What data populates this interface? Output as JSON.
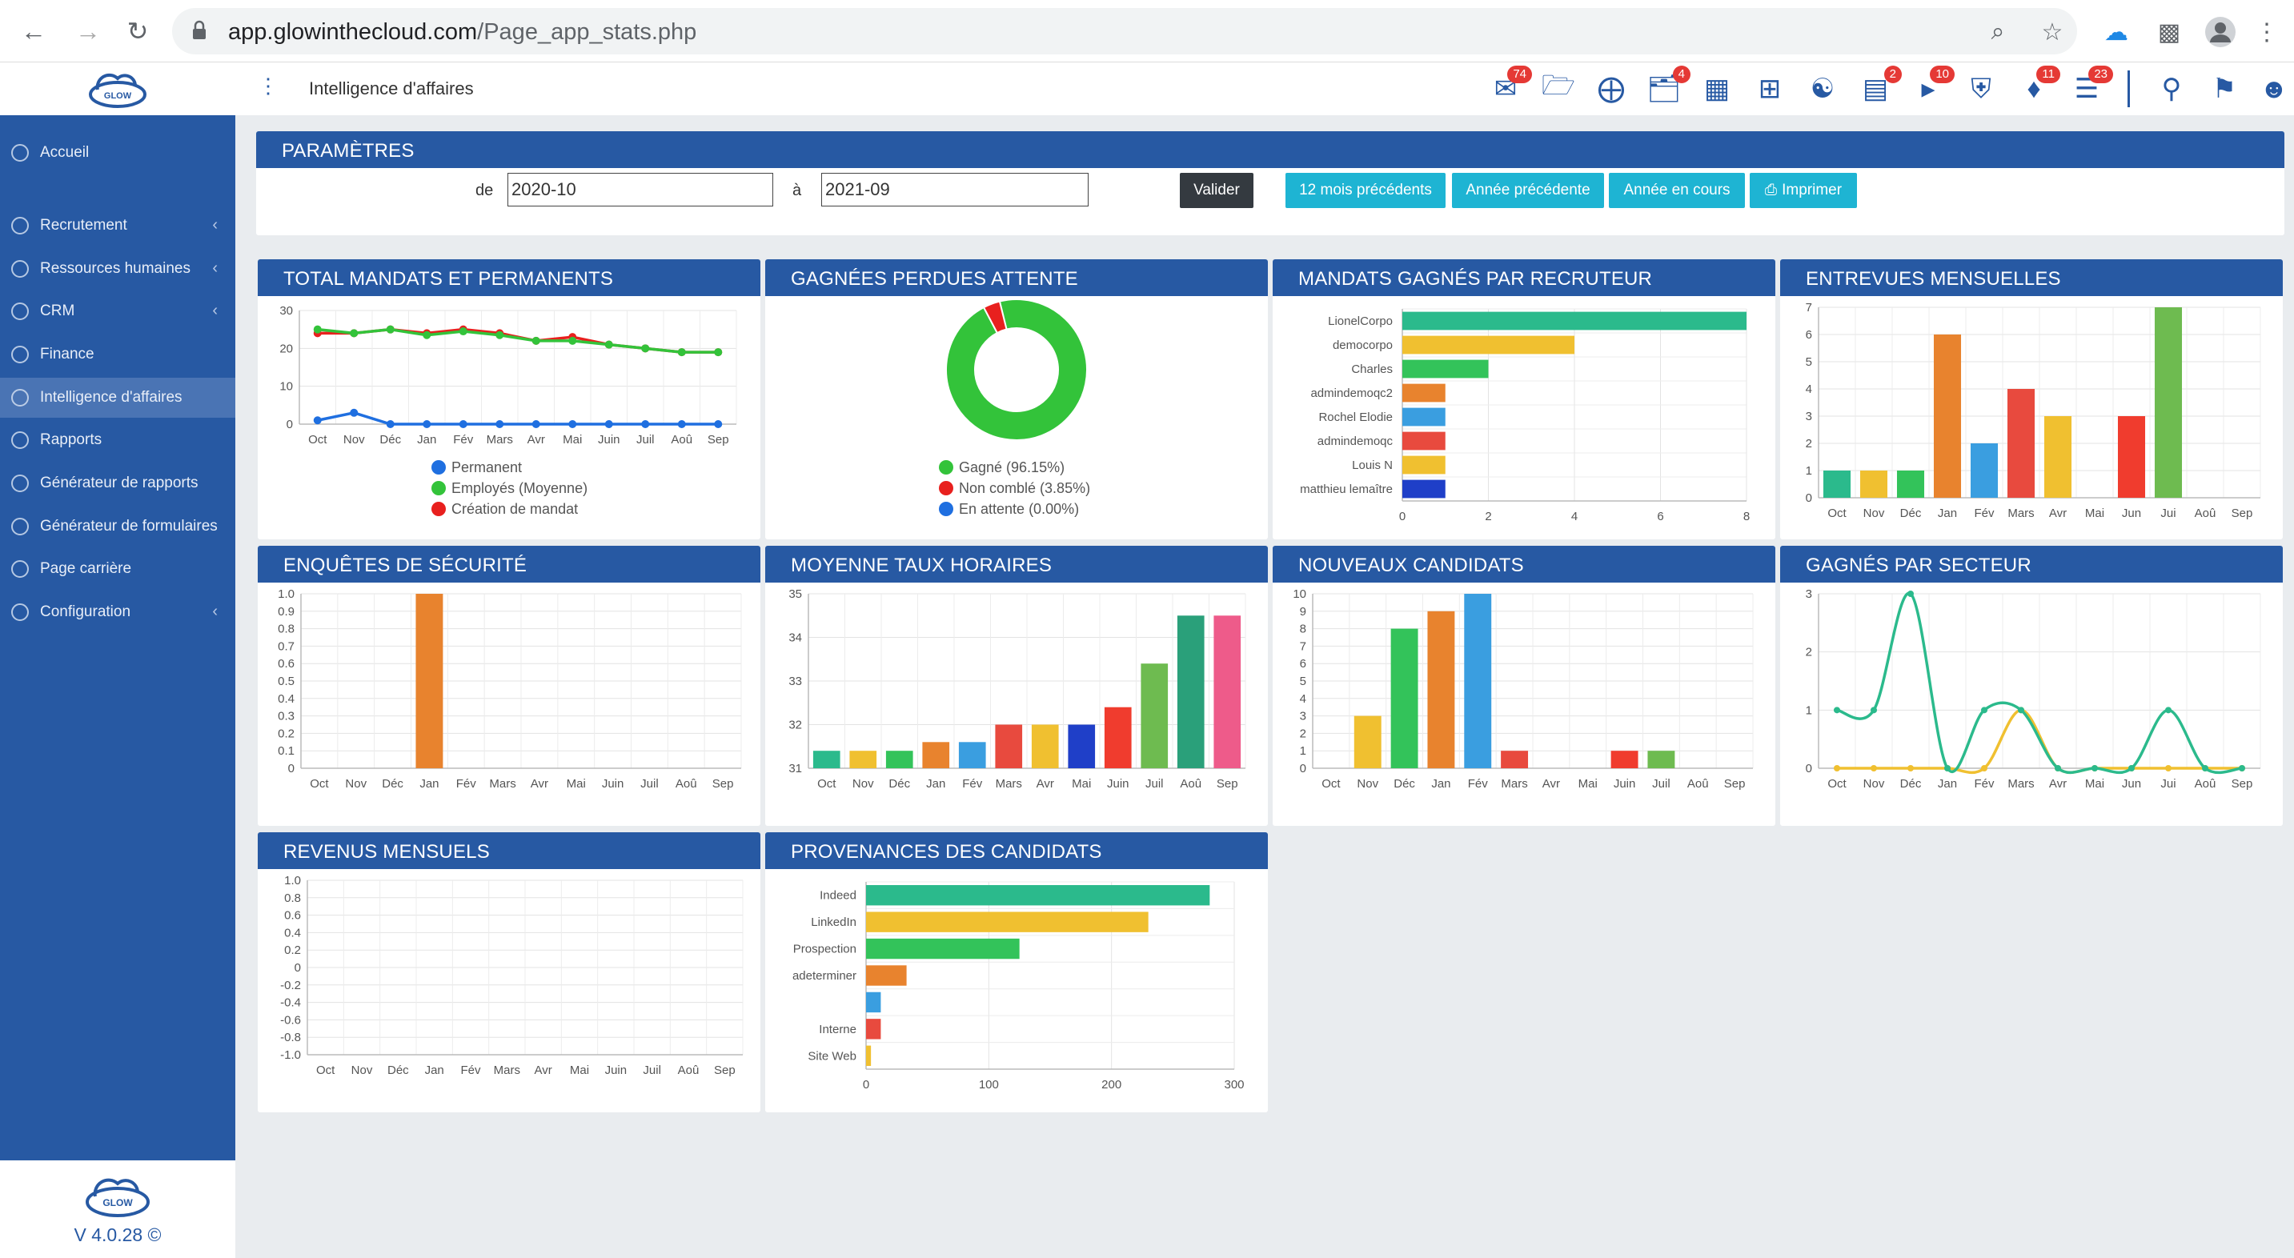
{
  "browser": {
    "url_domain": "app.glowinthecloud.com",
    "url_path": "/Page_app_stats.php"
  },
  "app": {
    "page_title": "Intelligence d'affaires",
    "logo_text": "GLOW",
    "version": "V 4.0.28 ©"
  },
  "sidebar": {
    "items": [
      {
        "label": "Accueil",
        "chevron": false
      },
      {
        "label": "Recrutement",
        "chevron": true
      },
      {
        "label": "Ressources humaines",
        "chevron": true
      },
      {
        "label": "CRM",
        "chevron": true
      },
      {
        "label": "Finance",
        "chevron": false
      },
      {
        "label": "Intelligence d'affaires",
        "chevron": false,
        "active": true
      },
      {
        "label": "Rapports",
        "chevron": false
      },
      {
        "label": "Générateur de rapports",
        "chevron": false
      },
      {
        "label": "Générateur de formulaires",
        "chevron": false
      },
      {
        "label": "Page carrière",
        "chevron": false
      },
      {
        "label": "Configuration",
        "chevron": true
      }
    ]
  },
  "topbar": {
    "badges": {
      "mail": "74",
      "folder_open": "4",
      "archive": "2",
      "megaphone": "10",
      "bell": "11",
      "tasks": "23"
    }
  },
  "params": {
    "title": "PARAMÈTRES",
    "from_label": "de",
    "from_value": "2020-10",
    "to_label": "à",
    "to_value": "2021-09",
    "validate": "Valider",
    "btn_12": "12 mois précédents",
    "btn_prev_year": "Année précédente",
    "btn_cur_year": "Année en cours",
    "btn_print": "Imprimer"
  },
  "months": [
    "Oct",
    "Nov",
    "Déc",
    "Jan",
    "Fév",
    "Mars",
    "Avr",
    "Mai",
    "Juin",
    "Juil",
    "Aoû",
    "Sep"
  ],
  "months_short": [
    "Oct",
    "Nov",
    "Déc",
    "Jan",
    "Fév",
    "Mars",
    "Avr",
    "Mai",
    "Jun",
    "Jui",
    "Aoû",
    "Sep"
  ],
  "panels": {
    "p1": "TOTAL MANDATS ET PERMANENTS",
    "p2": "GAGNÉES PERDUES ATTENTE",
    "p3": "MANDATS GAGNÉS PAR RECRUTEUR",
    "p4": "ENTREVUES MENSUELLES",
    "p5": "ENQUÊTES DE SÉCURITÉ",
    "p6": "MOYENNE TAUX HORAIRES",
    "p7": "NOUVEAUX CANDIDATS",
    "p8": "GAGNÉS PAR SECTEUR",
    "p9": "REVENUS MENSUELS",
    "p10": "PROVENANCES DES CANDIDATS"
  },
  "chart_data": [
    {
      "type": "line",
      "categories": [
        "Oct",
        "Nov",
        "Déc",
        "Jan",
        "Fév",
        "Mars",
        "Avr",
        "Mai",
        "Juin",
        "Juil",
        "Aoû",
        "Sep"
      ],
      "ylim": [
        0,
        30
      ],
      "series": [
        {
          "name": "Permanent",
          "color": "#1f6fe0",
          "values": [
            1,
            3,
            0,
            0,
            0,
            0,
            0,
            0,
            0,
            0,
            0,
            0
          ]
        },
        {
          "name": "Employés (Moyenne)",
          "color": "#33c33a",
          "values": [
            25,
            24,
            25,
            23.5,
            24.5,
            23.5,
            22,
            22,
            21,
            20,
            19,
            19
          ]
        },
        {
          "name": "Création de mandat",
          "color": "#e8201e",
          "values": [
            24,
            24,
            25,
            24,
            25,
            24,
            22,
            23,
            21,
            20,
            19,
            19
          ]
        }
      ]
    },
    {
      "type": "pie",
      "slices": [
        {
          "label": "Gagné (96.15%)",
          "value": 96.15,
          "color": "#33c33a"
        },
        {
          "label": "Non comblé (3.85%)",
          "value": 3.85,
          "color": "#e8201e"
        },
        {
          "label": "En attente (0.00%)",
          "value": 0,
          "color": "#1f6fe0"
        }
      ]
    },
    {
      "type": "bar",
      "orientation": "horizontal",
      "categories": [
        "LionelCorpo",
        "democorpo",
        "Charles",
        "admindemoqc2",
        "Rochel Elodie",
        "admindemoqc",
        "Louis N",
        "matthieu lemaître"
      ],
      "values": [
        8,
        4,
        2,
        1,
        1,
        1,
        1,
        1
      ],
      "colors": [
        "#2bba8c",
        "#f0c030",
        "#33c35a",
        "#e8832e",
        "#3a9ee0",
        "#e84a3e",
        "#f0c030",
        "#1f3fc8"
      ],
      "xlim": [
        0,
        8
      ]
    },
    {
      "type": "bar",
      "categories": [
        "Oct",
        "Nov",
        "Déc",
        "Jan",
        "Fév",
        "Mars",
        "Avr",
        "Mai",
        "Jun",
        "Jui",
        "Aoû",
        "Sep"
      ],
      "values": [
        1,
        1,
        1,
        6,
        2,
        4,
        3,
        0,
        3,
        7,
        0,
        0
      ],
      "colors": [
        "#2bba8c",
        "#f0c030",
        "#33c35a",
        "#e8832e",
        "#3a9ee0",
        "#e84a3e",
        "#f0c030",
        "#1f3fc8",
        "#f03c2e",
        "#6ebb50",
        "#2bba8c",
        "#f0c030"
      ],
      "ylim": [
        0,
        7
      ]
    },
    {
      "type": "bar",
      "categories": [
        "Oct",
        "Nov",
        "Déc",
        "Jan",
        "Fév",
        "Mars",
        "Avr",
        "Mai",
        "Juin",
        "Juil",
        "Aoû",
        "Sep"
      ],
      "values": [
        0,
        0,
        0,
        1,
        0,
        0,
        0,
        0,
        0,
        0,
        0,
        0
      ],
      "colors": [
        "#e8832e",
        "#e8832e",
        "#e8832e",
        "#e8832e",
        "#e8832e",
        "#e8832e",
        "#e8832e",
        "#e8832e",
        "#e8832e",
        "#e8832e",
        "#e8832e",
        "#e8832e"
      ],
      "ylim": [
        0,
        1
      ]
    },
    {
      "type": "bar",
      "categories": [
        "Oct",
        "Nov",
        "Déc",
        "Jan",
        "Fév",
        "Mars",
        "Avr",
        "Mai",
        "Juin",
        "Juil",
        "Aoû",
        "Sep"
      ],
      "values": [
        31.4,
        31.4,
        31.4,
        31.6,
        31.6,
        32,
        32,
        32,
        32.4,
        33.4,
        34.5,
        34.5
      ],
      "colors": [
        "#2bba8c",
        "#f0c030",
        "#33c35a",
        "#e8832e",
        "#3a9ee0",
        "#e84a3e",
        "#f0c030",
        "#1f3fc8",
        "#f03c2e",
        "#6ebb50",
        "#2aa07a",
        "#ee5b8a"
      ],
      "ylim": [
        31,
        35
      ]
    },
    {
      "type": "bar",
      "categories": [
        "Oct",
        "Nov",
        "Déc",
        "Jan",
        "Fév",
        "Mars",
        "Avr",
        "Mai",
        "Juin",
        "Juil",
        "Aoû",
        "Sep"
      ],
      "values": [
        0,
        3,
        8,
        9,
        10,
        1,
        0,
        0,
        1,
        1,
        0,
        0
      ],
      "colors": [
        "#2bba8c",
        "#f0c030",
        "#33c35a",
        "#e8832e",
        "#3a9ee0",
        "#e84a3e",
        "#f0c030",
        "#1f3fc8",
        "#f03c2e",
        "#6ebb50",
        "#2bba8c",
        "#f0c030"
      ],
      "ylim": [
        0,
        10
      ]
    },
    {
      "type": "line",
      "smooth": true,
      "categories": [
        "Oct",
        "Nov",
        "Déc",
        "Jan",
        "Fév",
        "Mars",
        "Avr",
        "Mai",
        "Jun",
        "Jui",
        "Aoû",
        "Sep"
      ],
      "ylim": [
        0,
        3
      ],
      "series": [
        {
          "color": "#2bba8c",
          "values": [
            1,
            1,
            3,
            0,
            1,
            1,
            0,
            0,
            0,
            1,
            0,
            0
          ]
        },
        {
          "color": "#f0c030",
          "values": [
            0,
            0,
            0,
            0,
            0,
            1,
            0,
            0,
            0,
            0,
            0,
            0
          ]
        }
      ]
    },
    {
      "type": "bar",
      "categories": [
        "Oct",
        "Nov",
        "Déc",
        "Jan",
        "Fév",
        "Mars",
        "Avr",
        "Mai",
        "Juin",
        "Juil",
        "Aoû",
        "Sep"
      ],
      "values": [
        0,
        0,
        0,
        0,
        0,
        0,
        0,
        0,
        0,
        0,
        0,
        0
      ],
      "ylim": [
        -1,
        1
      ]
    },
    {
      "type": "bar",
      "orientation": "horizontal",
      "categories": [
        "Indeed",
        "LinkedIn",
        "Prospection",
        "adeterminer",
        "",
        "Interne",
        "Site Web"
      ],
      "values": [
        280,
        230,
        125,
        33,
        12,
        12,
        4
      ],
      "colors": [
        "#2bba8c",
        "#f0c030",
        "#33c35a",
        "#e8832e",
        "#3a9ee0",
        "#e84a3e",
        "#f0c030"
      ],
      "xlim": [
        0,
        300
      ]
    }
  ]
}
